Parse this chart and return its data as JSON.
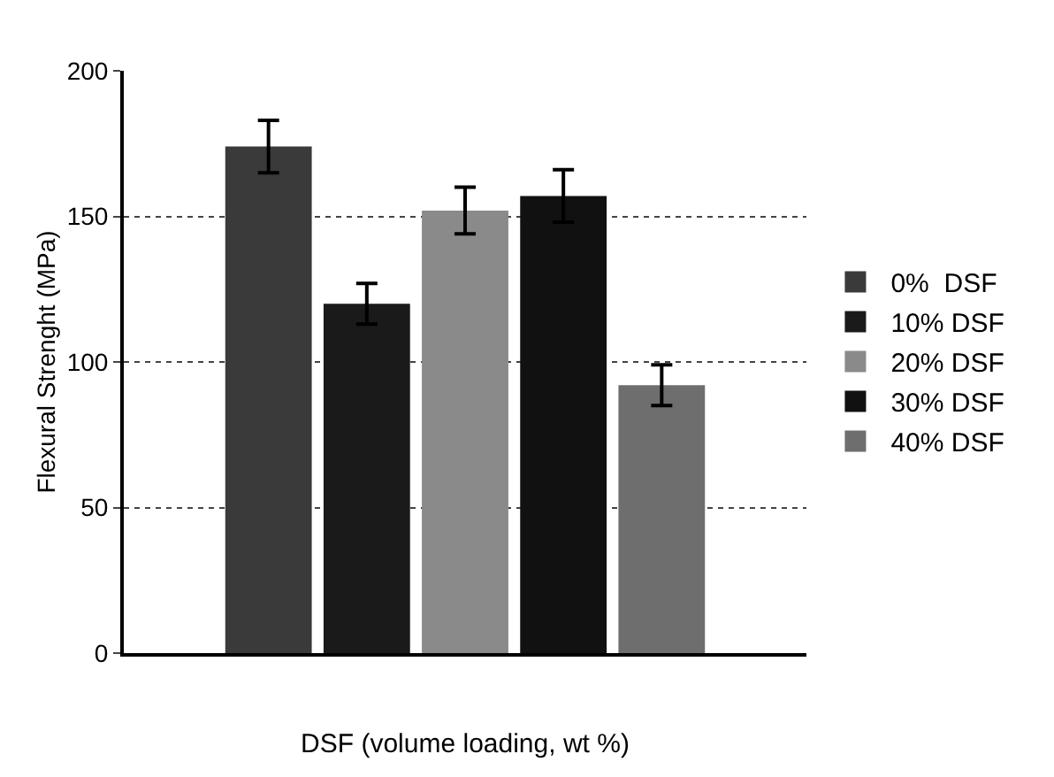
{
  "chart_data": {
    "type": "bar",
    "xlabel": "DSF (volume loading, wt %)",
    "ylabel": "Flexural Strenght (MPa)",
    "categories": [
      null
    ],
    "series": [
      {
        "name": "0%  DSF",
        "color": "#3a3a3a",
        "values": [
          174
        ],
        "errors": [
          9
        ]
      },
      {
        "name": "10% DSF",
        "color": "#1a1a1a",
        "values": [
          120
        ],
        "errors": [
          7
        ]
      },
      {
        "name": "20% DSF",
        "color": "#8a8a8a",
        "values": [
          152
        ],
        "errors": [
          8
        ]
      },
      {
        "name": "30% DSF",
        "color": "#111111",
        "values": [
          157
        ],
        "errors": [
          9
        ]
      },
      {
        "name": "40% DSF",
        "color": "#6e6e6e",
        "values": [
          92
        ],
        "errors": [
          7
        ]
      }
    ],
    "ylim": [
      0,
      200
    ],
    "yticks": [
      0,
      50,
      100,
      150,
      200
    ],
    "grid": "y",
    "legend": "right"
  }
}
